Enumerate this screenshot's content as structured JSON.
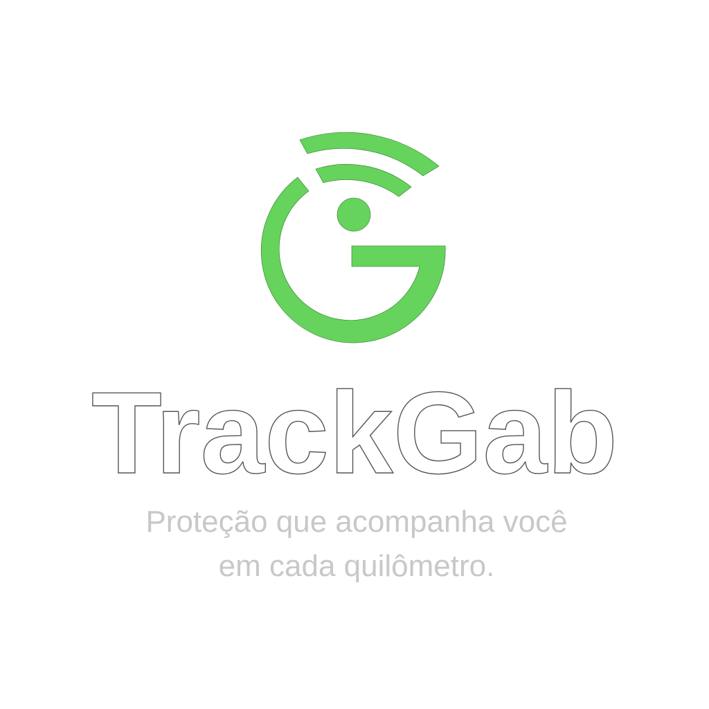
{
  "brand": {
    "name": "TrackGab",
    "tagline_line1": "Proteção que acompanha você",
    "tagline_line2": "em cada quilômetro.",
    "logo_icon": "g-signal-icon"
  },
  "colors": {
    "brand_green": "#66d35c",
    "wordmark_fill": "#ffffff",
    "wordmark_stroke": "#555555",
    "tagline_fill": "#c8c8c8"
  }
}
